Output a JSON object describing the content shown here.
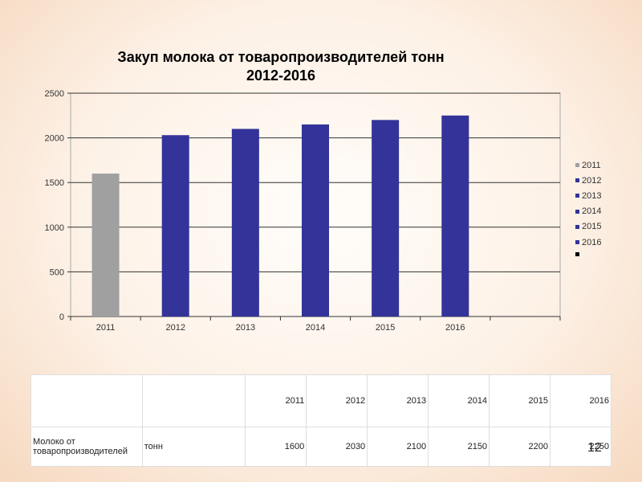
{
  "chart_data": {
    "type": "bar",
    "title": [
      "Закуп молока от товаропроизводителей тонн",
      "2012-2016"
    ],
    "categories": [
      "2011",
      "2012",
      "2013",
      "2014",
      "2015",
      "2016"
    ],
    "values": [
      1600,
      2030,
      2100,
      2150,
      2200,
      2250
    ],
    "colors": [
      "#a0a0a0",
      "#333399",
      "#333399",
      "#333399",
      "#333399",
      "#333399"
    ],
    "yticks": [
      0,
      500,
      1000,
      1500,
      2000,
      2500
    ],
    "ylim": [
      0,
      2500
    ],
    "grid": "horizontal",
    "legend": [
      "2011",
      "2012",
      "2013",
      "2014",
      "2015",
      "2016"
    ],
    "legend_position": "right"
  },
  "table": {
    "years": [
      "2011",
      "2012",
      "2013",
      "2014",
      "2015",
      "2016"
    ],
    "row_label": "Молоко от товаропроизводителей",
    "unit": "тонн",
    "values": [
      "1600",
      "2030",
      "2100",
      "2150",
      "2200",
      "2250"
    ]
  },
  "page_number": "12"
}
